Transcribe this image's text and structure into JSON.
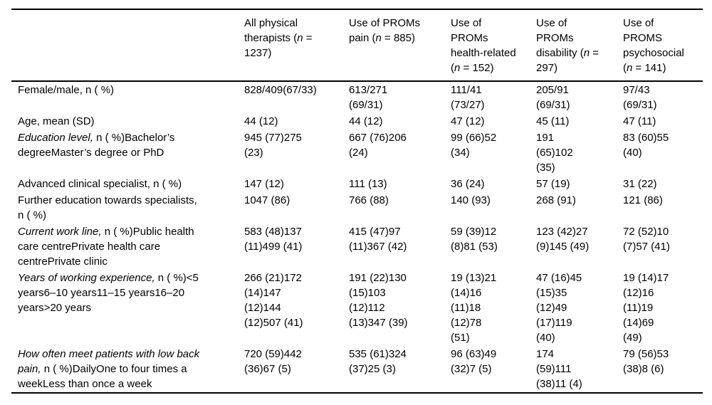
{
  "colors": {
    "background": "#ffffff",
    "text": "#000000",
    "rule": "#000000"
  },
  "table": {
    "columns": [
      {
        "parts": []
      },
      {
        "parts": [
          {
            "t": "All physical\ntherapists (",
            "i": false
          },
          {
            "t": "n",
            "i": true
          },
          {
            "t": " =\n1237)",
            "i": false
          }
        ]
      },
      {
        "parts": [
          {
            "t": "Use of PROMs\npain (",
            "i": false
          },
          {
            "t": "n",
            "i": true
          },
          {
            "t": " = 885)",
            "i": false
          }
        ]
      },
      {
        "parts": [
          {
            "t": "Use of\nPROMs\nhealth-related\n(",
            "i": false
          },
          {
            "t": "n",
            "i": true
          },
          {
            "t": " = 152)",
            "i": false
          }
        ]
      },
      {
        "parts": [
          {
            "t": "Use of\nPROMs\ndisability (",
            "i": false
          },
          {
            "t": "n",
            "i": true
          },
          {
            "t": " =\n297)",
            "i": false
          }
        ]
      },
      {
        "parts": [
          {
            "t": "Use of\nPROMS\npsychosocial\n(",
            "i": false
          },
          {
            "t": "n",
            "i": true
          },
          {
            "t": " = 141)",
            "i": false
          }
        ]
      }
    ],
    "rows": [
      {
        "label": [
          {
            "t": "Female/male, n ( %)",
            "i": false
          }
        ],
        "values": [
          "828/409(67/33)",
          "613/271\n(69/31)",
          "111/41\n(73/27)",
          "205/91\n(69/31)",
          "97/43\n(69/31)"
        ]
      },
      {
        "label": [
          {
            "t": "Age, mean (SD)",
            "i": false
          }
        ],
        "values": [
          "44 (12)",
          "44 (12)",
          "47 (12)",
          "45 (11)",
          "47 (11)"
        ]
      },
      {
        "label": [
          {
            "t": "Education level,",
            "i": true
          },
          {
            "t": " n ( %)Bachelor’s\ndegreeMaster’s degree or PhD",
            "i": false
          }
        ],
        "values": [
          "945 (77)275\n(23)",
          "667 (76)206\n(24)",
          "99 (66)52\n(34)",
          "191\n(65)102\n(35)",
          "83 (60)55\n(40)"
        ]
      },
      {
        "label": [
          {
            "t": "Advanced clinical specialist, n ( %)",
            "i": false
          }
        ],
        "values": [
          "147 (12)",
          "111 (13)",
          "36 (24)",
          "57 (19)",
          "31 (22)"
        ]
      },
      {
        "label": [
          {
            "t": "Further education towards specialists,\nn ( %)",
            "i": false
          }
        ],
        "values": [
          "1047 (86)",
          "766 (88)",
          "140 (93)",
          "268 (91)",
          "121 (86)"
        ]
      },
      {
        "label": [
          {
            "t": "Current work line,",
            "i": true
          },
          {
            "t": " n ( %)Public health\ncare centrePrivate health care\ncentrePrivate clinic",
            "i": false
          }
        ],
        "values": [
          "583 (48)137\n(11)499 (41)",
          "415 (47)97\n(11)367 (42)",
          "59 (39)12\n(8)81 (53)",
          "123 (42)27\n(9)145 (49)",
          "72 (52)10\n(7)57 (41)"
        ]
      },
      {
        "label": [
          {
            "t": "Years of working experience,",
            "i": true
          },
          {
            "t": " n ( %)<5\nyears6–10 years11–15 years16–20\nyears>20 years",
            "i": false
          }
        ],
        "values": [
          "266 (21)172\n(14)147\n(12)144\n(12)507 (41)",
          "191 (22)130\n(15)103\n(12)112\n(13)347 (39)",
          "19 (13)21\n(14)16\n(11)18\n(12)78\n(51)",
          "47 (16)45\n(15)35\n(12)49\n(17)119\n(40)",
          "19 (14)17\n(12)16\n(11)19\n(14)69\n(49)"
        ]
      },
      {
        "label": [
          {
            "t": "How often meet patients with low back\npain,",
            "i": true
          },
          {
            "t": " n ( %)DailyOne to four times a\nweekLess than once a week",
            "i": false
          }
        ],
        "values": [
          "720 (59)442\n(36)67 (5)",
          "535 (61)324\n(37)25 (3)",
          "96 (63)49\n(32)7 (5)",
          "174\n(59)111\n(38)11 (4)",
          "79 (56)53\n(38)8 (6)"
        ]
      }
    ]
  }
}
